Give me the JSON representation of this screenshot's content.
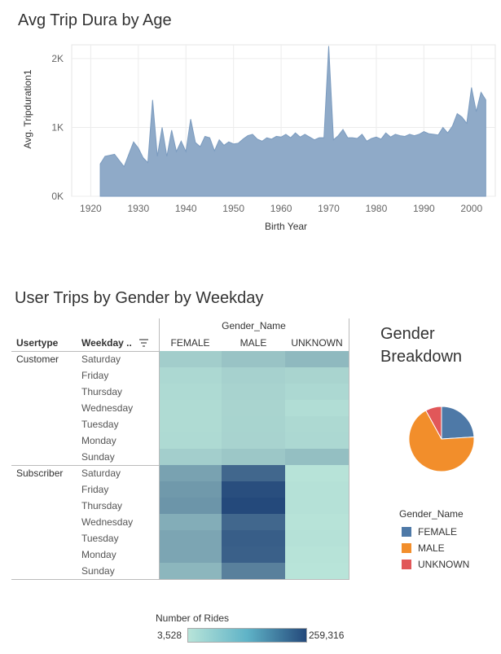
{
  "colors": {
    "area": "#8faac8",
    "area_line": "#7b9bbf",
    "female": "#4e79a7",
    "male": "#f28e2b",
    "unknown": "#e15759",
    "heat_low": "#b8e4d9",
    "heat_high": "#24497b"
  },
  "chart_data": [
    {
      "type": "area",
      "title": "Avg Trip Dura by Age",
      "xlabel": "Birth Year",
      "ylabel": "Avg. Tripduration1",
      "xlim": [
        1916,
        2005
      ],
      "ylim": [
        0,
        2200
      ],
      "xticks": [
        1920,
        1930,
        1940,
        1950,
        1960,
        1970,
        1980,
        1990,
        2000
      ],
      "yticks": [
        {
          "value": 0,
          "label": "0K"
        },
        {
          "value": 1000,
          "label": "1K"
        },
        {
          "value": 2000,
          "label": "2K"
        }
      ],
      "grid": true,
      "x": [
        1922,
        1923,
        1925,
        1927,
        1929,
        1930,
        1931,
        1932,
        1933,
        1934,
        1935,
        1936,
        1937,
        1938,
        1939,
        1940,
        1941,
        1942,
        1943,
        1944,
        1945,
        1946,
        1947,
        1948,
        1949,
        1950,
        1951,
        1952,
        1953,
        1954,
        1955,
        1956,
        1957,
        1958,
        1959,
        1960,
        1961,
        1962,
        1963,
        1964,
        1965,
        1966,
        1967,
        1968,
        1969,
        1970,
        1971,
        1972,
        1973,
        1974,
        1975,
        1976,
        1977,
        1978,
        1979,
        1980,
        1981,
        1982,
        1983,
        1984,
        1985,
        1986,
        1987,
        1988,
        1989,
        1990,
        1991,
        1992,
        1993,
        1994,
        1995,
        1996,
        1997,
        1998,
        1999,
        2000,
        2001,
        2002,
        2003
      ],
      "y": [
        470,
        580,
        610,
        430,
        790,
        700,
        560,
        490,
        1400,
        580,
        1000,
        580,
        960,
        650,
        800,
        650,
        1120,
        780,
        720,
        870,
        850,
        660,
        820,
        740,
        790,
        760,
        770,
        830,
        880,
        900,
        830,
        800,
        850,
        830,
        870,
        860,
        900,
        850,
        920,
        860,
        900,
        860,
        820,
        850,
        850,
        2180,
        820,
        880,
        970,
        850,
        850,
        840,
        900,
        800,
        840,
        860,
        830,
        920,
        860,
        900,
        880,
        870,
        900,
        880,
        900,
        940,
        910,
        900,
        890,
        1000,
        920,
        1020,
        1200,
        1150,
        1060,
        1580,
        1230,
        1510,
        1400
      ]
    },
    {
      "type": "heatmap",
      "title": "User Trips by Gender by Weekday",
      "column_group_label": "Gender_Name",
      "row_header": "Usertype",
      "weekday_header": "Weekday ..",
      "columns": [
        "FEMALE",
        "MALE",
        "UNKNOWN"
      ],
      "legend_title": "Number of Rides",
      "legend_min": "3,528",
      "legend_max": "259,316",
      "range": [
        3528,
        259316
      ],
      "groups": [
        {
          "usertype": "Customer",
          "rows": [
            {
              "weekday": "Saturday",
              "values": [
                16000,
                24000,
                34000
              ]
            },
            {
              "weekday": "Friday",
              "values": [
                9000,
                13000,
                11000
              ]
            },
            {
              "weekday": "Thursday",
              "values": [
                8000,
                12000,
                9000
              ]
            },
            {
              "weekday": "Wednesday",
              "values": [
                7500,
                11000,
                6500
              ]
            },
            {
              "weekday": "Tuesday",
              "values": [
                7500,
                11500,
                8500
              ]
            },
            {
              "weekday": "Monday",
              "values": [
                8000,
                12000,
                9000
              ]
            },
            {
              "weekday": "Sunday",
              "values": [
                15000,
                21000,
                28000
              ]
            }
          ]
        },
        {
          "usertype": "Subscriber",
          "rows": [
            {
              "weekday": "Saturday",
              "values": [
                63000,
                178000,
                4000
              ]
            },
            {
              "weekday": "Friday",
              "values": [
                77000,
                244000,
                4500
              ]
            },
            {
              "weekday": "Thursday",
              "values": [
                84000,
                259316,
                4500
              ]
            },
            {
              "weekday": "Wednesday",
              "values": [
                48000,
                178000,
                4000
              ]
            },
            {
              "weekday": "Tuesday",
              "values": [
                58000,
                201000,
                4500
              ]
            },
            {
              "weekday": "Monday",
              "values": [
                58000,
                196000,
                4000
              ]
            },
            {
              "weekday": "Sunday",
              "values": [
                37000,
                122000,
                3528
              ]
            }
          ]
        }
      ]
    },
    {
      "type": "pie",
      "title": "Gender Breakdown",
      "legend_title": "Gender_Name",
      "labels": [
        "FEMALE",
        "MALE",
        "UNKNOWN"
      ],
      "values": [
        24,
        68,
        8
      ]
    }
  ]
}
